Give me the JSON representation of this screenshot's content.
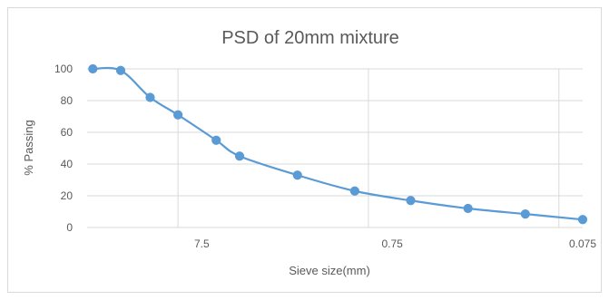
{
  "chart_data": {
    "type": "line",
    "title": "PSD of 20mm mixture",
    "xlabel": "Sieve size(mm)",
    "ylabel": "% Passing",
    "x_scale": "log",
    "x_reversed": true,
    "xlim": [
      30,
      0.075
    ],
    "ylim": [
      0,
      100
    ],
    "y_ticks": [
      0,
      20,
      40,
      60,
      80,
      100
    ],
    "x_ticks": [
      7.5,
      0.75,
      0.075
    ],
    "x_tick_labels": [
      "7.5",
      "0.75",
      "0.075"
    ],
    "grid": {
      "horizontal": true,
      "vertical": true
    },
    "legend": "none",
    "series_color": "#5b9bd5",
    "x": [
      28,
      20,
      14,
      10,
      6.3,
      4.75,
      2.36,
      1.18,
      0.6,
      0.3,
      0.15,
      0.075
    ],
    "y": [
      100,
      99,
      82,
      71,
      55,
      45,
      33,
      23,
      17,
      12,
      8.5,
      5
    ]
  }
}
